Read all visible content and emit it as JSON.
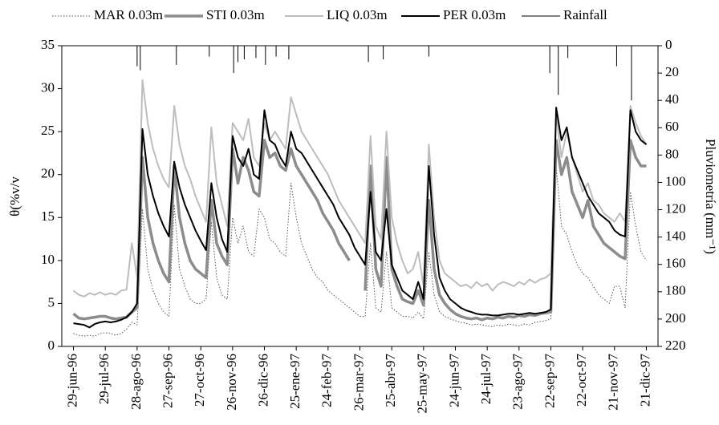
{
  "chart_data": {
    "type": "line",
    "y_label": "θ(%v/v",
    "y2_label": "Pluviometría (mm⁻¹)",
    "x": [
      0,
      5,
      10,
      15,
      20,
      25,
      30,
      35,
      40,
      45,
      50,
      55,
      60,
      65,
      70,
      75,
      80,
      85,
      90,
      95,
      100,
      105,
      110,
      115,
      120,
      125,
      130,
      135,
      140,
      145,
      150,
      155,
      160,
      165,
      170,
      175,
      180,
      185,
      190,
      195,
      200,
      205,
      210,
      215,
      220,
      225,
      230,
      235,
      240,
      245,
      250,
      255,
      260,
      265,
      270,
      275,
      280,
      285,
      290,
      295,
      300,
      305,
      310,
      315,
      320,
      325,
      330,
      335,
      340,
      345,
      350,
      355,
      360,
      365,
      370,
      375,
      380,
      385,
      390,
      395,
      400,
      405,
      410,
      415,
      420,
      425,
      430,
      435,
      440,
      445,
      450,
      455,
      460,
      465,
      470,
      475,
      480,
      485,
      490,
      495,
      500,
      505,
      510,
      515,
      520,
      525,
      530,
      535,
      540
    ],
    "xlim": [
      -11,
      551
    ],
    "xticks": [
      {
        "value": 0,
        "label": "29-jun-96"
      },
      {
        "value": 30,
        "label": "29-jul-96"
      },
      {
        "value": 60,
        "label": "28-ago-96"
      },
      {
        "value": 90,
        "label": "27-sep-96"
      },
      {
        "value": 120,
        "label": "27-oct-96"
      },
      {
        "value": 150,
        "label": "26-nov-96"
      },
      {
        "value": 180,
        "label": "26-dic-96"
      },
      {
        "value": 210,
        "label": "25-ene-97"
      },
      {
        "value": 240,
        "label": "24-feb-97"
      },
      {
        "value": 270,
        "label": "26-mar-97"
      },
      {
        "value": 300,
        "label": "25-abr-97"
      },
      {
        "value": 330,
        "label": "25-may-97"
      },
      {
        "value": 360,
        "label": "24-jun-97"
      },
      {
        "value": 390,
        "label": "24-jul-97"
      },
      {
        "value": 420,
        "label": "23-ago-97"
      },
      {
        "value": 450,
        "label": "22-sep-97"
      },
      {
        "value": 480,
        "label": "22-oct-97"
      },
      {
        "value": 510,
        "label": "21-nov-97"
      },
      {
        "value": 540,
        "label": "21-dic-97"
      }
    ],
    "ylim": [
      0,
      35
    ],
    "yticks": [
      0,
      5,
      10,
      15,
      20,
      25,
      30,
      35
    ],
    "y2lim": [
      220,
      0
    ],
    "y2ticks": [
      0,
      20,
      40,
      60,
      80,
      100,
      120,
      140,
      160,
      180,
      200,
      220
    ],
    "series": [
      {
        "name": "MAR 0.03m",
        "color": "#555555",
        "dash": true,
        "values": [
          1.5,
          1.3,
          1.2,
          1.3,
          1.2,
          1.5,
          1.6,
          1.5,
          1.3,
          1.5,
          2,
          2.8,
          2.5,
          16,
          9,
          6.5,
          5,
          4,
          3.5,
          16.5,
          9,
          7,
          5.5,
          5,
          5,
          5.5,
          14.5,
          8,
          6,
          5.5,
          15,
          12,
          14,
          11,
          10.5,
          16,
          15,
          12.5,
          12,
          11,
          10.5,
          19,
          15,
          12,
          10.5,
          9,
          8,
          7.5,
          6.5,
          6,
          5.5,
          5,
          4.5,
          4,
          3.5,
          3.5,
          12,
          4.5,
          4,
          11,
          4.5,
          4,
          3.5,
          3.5,
          3.3,
          4,
          3.2,
          11,
          6,
          4,
          3.5,
          3.2,
          3,
          2.8,
          2.7,
          2.5,
          2.6,
          2.5,
          2.4,
          2.3,
          2.5,
          2.4,
          2.6,
          2.5,
          2.4,
          2.6,
          2.5,
          2.8,
          2.9,
          3,
          3.2,
          21,
          14,
          13,
          11,
          9.5,
          8.5,
          8,
          7,
          6,
          5.5,
          5,
          7,
          7,
          4.5,
          18,
          14,
          11,
          10
        ]
      },
      {
        "name": "STI 0.03m",
        "color": "#8c8c8c",
        "values": [
          3.8,
          3.3,
          3.2,
          3.3,
          3.4,
          3.5,
          3.5,
          3.3,
          3.2,
          3.3,
          3.4,
          4,
          4.5,
          22,
          15,
          12,
          10,
          8.5,
          7.5,
          21,
          15,
          12,
          10,
          9,
          8.5,
          8,
          17,
          12,
          10.5,
          9.5,
          23,
          19,
          22,
          20.5,
          18,
          17.5,
          24,
          22,
          22.5,
          21,
          20.5,
          23,
          21,
          20,
          19,
          18,
          17,
          15.5,
          14.5,
          13.5,
          12,
          11,
          10,
          null,
          null,
          6.5,
          21,
          9,
          7,
          22,
          9,
          7,
          5.5,
          5.2,
          5,
          6.5,
          4.8,
          17,
          9,
          6,
          5,
          4.3,
          3.8,
          3.5,
          3.3,
          3.2,
          3.3,
          3.1,
          3.3,
          3.2,
          3.4,
          3.3,
          3.5,
          3.4,
          3.6,
          3.5,
          3.7,
          3.6,
          3.8,
          3.9,
          4,
          24,
          20,
          22,
          18,
          16.5,
          15,
          17,
          14,
          13,
          12,
          11.5,
          11,
          10.5,
          10.2,
          24,
          22,
          21,
          21
        ]
      },
      {
        "name": "LIQ 0.03m",
        "color": "#bdbdbd",
        "values": [
          6.5,
          6,
          5.8,
          6.2,
          6,
          6.3,
          6,
          6.2,
          6,
          6.5,
          6.6,
          12,
          8,
          31,
          26,
          23,
          21,
          19.5,
          18.5,
          28,
          23.5,
          21,
          19.5,
          17.5,
          16,
          14.5,
          25.5,
          19,
          16.5,
          14,
          26,
          25,
          24,
          26.5,
          22,
          21,
          26,
          24,
          25,
          24,
          23,
          29,
          27,
          25,
          24,
          23,
          22,
          21,
          20,
          18.5,
          17,
          16,
          15,
          14,
          13,
          12,
          24.5,
          14,
          12.5,
          25,
          15,
          12,
          10,
          8.5,
          9,
          11,
          7,
          23.5,
          15,
          10,
          8.5,
          8,
          7.5,
          7,
          7.2,
          6.8,
          7.5,
          7,
          7.3,
          6.5,
          7.2,
          7.5,
          7.3,
          7,
          7.5,
          7.2,
          7.8,
          7.4,
          7.8,
          8,
          8.5,
          27,
          22,
          25,
          22,
          20,
          18,
          19,
          17,
          16.5,
          15.5,
          15,
          14.5,
          15.5,
          14.5,
          28,
          26,
          24.5,
          23.5
        ]
      },
      {
        "name": "PER 0.03m",
        "color": "#000000",
        "values": [
          2.7,
          2.6,
          2.5,
          2.2,
          2.6,
          2.8,
          2.9,
          2.8,
          2.9,
          3.1,
          3.4,
          4,
          5,
          25.3,
          20,
          17.5,
          15.5,
          14,
          12.8,
          21.5,
          18.5,
          16.5,
          15,
          13.5,
          12.3,
          11.2,
          19,
          15,
          12.5,
          11,
          24.5,
          22,
          21,
          23,
          20,
          19.5,
          27.5,
          24,
          23.5,
          22,
          21,
          25,
          23,
          22.5,
          21.5,
          20.5,
          19.5,
          18.5,
          17.5,
          16.5,
          15,
          14,
          13,
          11.5,
          10.5,
          9.5,
          18,
          11,
          10,
          16,
          9.5,
          8,
          6.5,
          6,
          5.5,
          7.5,
          5.5,
          21,
          13,
          8,
          6.5,
          5.5,
          5,
          4.5,
          4.2,
          4,
          3.8,
          3.7,
          3.7,
          3.6,
          3.6,
          3.7,
          3.8,
          3.8,
          3.7,
          3.8,
          3.9,
          3.8,
          3.9,
          4,
          4.3,
          27.8,
          24,
          25.5,
          22,
          20.5,
          19,
          17.5,
          16.5,
          15.5,
          15,
          14.5,
          13.5,
          13,
          12.8,
          27.5,
          25,
          24,
          23.5
        ]
      },
      {
        "name": "Rainfall",
        "color": "#000000",
        "axis": "y2",
        "x": [
          60,
          63,
          97,
          128,
          151,
          155,
          161,
          172,
          181,
          191,
          203,
          278,
          292,
          335,
          449,
          457,
          466,
          512,
          526
        ],
        "values": [
          15,
          18,
          14,
          8,
          20,
          12,
          10,
          9,
          14,
          8,
          10,
          12,
          10,
          8,
          20,
          36,
          9,
          15,
          40
        ]
      }
    ]
  }
}
